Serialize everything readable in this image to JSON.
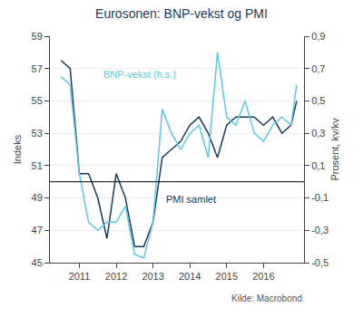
{
  "chart_data": {
    "type": "line",
    "title": "Eurosonen: BNP-vekst og PMI",
    "title_color": "#1b3a5c",
    "ylabel": "Indeks",
    "y2label": "Prosent, kv/kv",
    "x": [
      2010.5,
      2010.75,
      2011.0,
      2011.25,
      2011.5,
      2011.75,
      2012.0,
      2012.25,
      2012.5,
      2012.75,
      2013.0,
      2013.25,
      2013.5,
      2013.75,
      2014.0,
      2014.25,
      2014.5,
      2014.75,
      2015.0,
      2015.25,
      2015.5,
      2015.75,
      2016.0,
      2016.25,
      2016.5,
      2016.75,
      2016.9
    ],
    "series": [
      {
        "name": "PMI samlet",
        "color": "#1b3a5c",
        "values": [
          57.5,
          57.0,
          50.5,
          50.5,
          49.0,
          46.5,
          50.5,
          49.0,
          46.0,
          46.0,
          47.5,
          51.5,
          52.0,
          52.5,
          53.5,
          54.0,
          53.0,
          51.5,
          53.5,
          54.0,
          54.0,
          54.0,
          53.5,
          54.0,
          53.0,
          53.5,
          55.0
        ]
      },
      {
        "name": "BNP-vekst (h.s.)",
        "color": "#5bc8e8",
        "values": [
          56.5,
          56.0,
          50.5,
          47.5,
          47.0,
          47.5,
          47.5,
          48.5,
          45.5,
          45.3,
          47.5,
          54.5,
          53.0,
          52.0,
          53.0,
          53.5,
          51.5,
          58.0,
          54.0,
          53.5,
          55.0,
          53.0,
          52.5,
          53.5,
          54.0,
          53.5,
          56.0
        ]
      }
    ],
    "xlim": [
      2010.2,
      2017.1
    ],
    "xticks": [
      2011,
      2012,
      2013,
      2014,
      2015,
      2016
    ],
    "ylim": [
      45,
      59
    ],
    "yticks": [
      45,
      47,
      49,
      51,
      53,
      55,
      57,
      59
    ],
    "y2lim": [
      -0.5,
      0.9
    ],
    "y2ticks": [
      {
        "value": -0.5,
        "label": "-0,5"
      },
      {
        "value": -0.3,
        "label": "-0,3"
      },
      {
        "value": -0.1,
        "label": "-0,1"
      },
      {
        "value": 0.1,
        "label": "0,1"
      },
      {
        "value": 0.3,
        "label": "0,3"
      },
      {
        "value": 0.5,
        "label": "0,5"
      },
      {
        "value": 0.7,
        "label": "0,7"
      },
      {
        "value": 0.9,
        "label": "0,9"
      }
    ],
    "grid": true,
    "hline": 50.0,
    "annotations": [
      {
        "text": "BNP-vekst (h.s.)",
        "x": 2011.6,
        "y": 56.2,
        "color": "#5bc8e8"
      },
      {
        "text": "PMI samlet",
        "x": 2013.3,
        "y": 48.5,
        "color": "#1b3a5c"
      }
    ],
    "source": "Kilde: Macrobond"
  }
}
